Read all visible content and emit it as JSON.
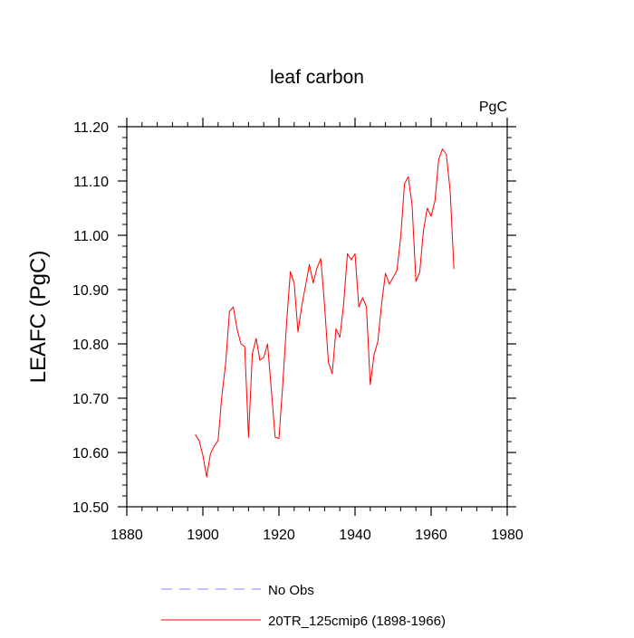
{
  "chart_data": {
    "type": "line",
    "title": "leaf carbon",
    "units_label": "PgC",
    "ylabel": "LEAFC  (PgC)",
    "xlabel": "",
    "xlim": [
      1880,
      1980
    ],
    "ylim": [
      10.5,
      11.2
    ],
    "x_ticks": [
      1880,
      1900,
      1920,
      1940,
      1960,
      1980
    ],
    "x_tick_labels": [
      "1880",
      "1900",
      "1920",
      "1940",
      "1960",
      "1980"
    ],
    "y_ticks": [
      10.5,
      10.6,
      10.7,
      10.8,
      10.9,
      11.0,
      11.1,
      11.2
    ],
    "y_tick_labels": [
      "10.50",
      "10.60",
      "10.70",
      "10.80",
      "10.90",
      "11.00",
      "11.10",
      "11.20"
    ],
    "grid": false,
    "legend_position": "bottom",
    "legend": [
      {
        "label": "No Obs",
        "color": "#8080ff",
        "dash": true
      },
      {
        "label": "20TR_125cmip6 (1898-1966)",
        "color": "#ff0000",
        "dash": false
      }
    ],
    "series": [
      {
        "name": "20TR_125cmip6 (1898-1966)",
        "color": "#ff0000",
        "x": [
          1898,
          1899,
          1900,
          1901,
          1902,
          1903,
          1904,
          1905,
          1906,
          1907,
          1908,
          1909,
          1910,
          1911,
          1912,
          1913,
          1914,
          1915,
          1916,
          1917,
          1918,
          1919,
          1920,
          1921,
          1922,
          1923,
          1924,
          1925,
          1926,
          1927,
          1928,
          1929,
          1930,
          1931,
          1932,
          1933,
          1934,
          1935,
          1936,
          1937,
          1938,
          1939,
          1940,
          1941,
          1942,
          1943,
          1944,
          1945,
          1946,
          1947,
          1948,
          1949,
          1950,
          1951,
          1952,
          1953,
          1954,
          1955,
          1956,
          1957,
          1958,
          1959,
          1960,
          1961,
          1962,
          1963,
          1964,
          1965,
          1966
        ],
        "values": [
          10.633,
          10.622,
          10.595,
          10.555,
          10.598,
          10.612,
          10.622,
          10.705,
          10.765,
          10.86,
          10.868,
          10.827,
          10.8,
          10.795,
          10.628,
          10.782,
          10.81,
          10.77,
          10.775,
          10.8,
          10.715,
          10.628,
          10.626,
          10.725,
          10.838,
          10.933,
          10.912,
          10.822,
          10.87,
          10.908,
          10.946,
          10.912,
          10.94,
          10.957,
          10.87,
          10.766,
          10.745,
          10.828,
          10.812,
          10.873,
          10.966,
          10.955,
          10.966,
          10.868,
          10.885,
          10.868,
          10.725,
          10.78,
          10.805,
          10.875,
          10.93,
          10.91,
          10.922,
          10.935,
          10.996,
          11.095,
          11.108,
          11.055,
          10.915,
          10.932,
          11.01,
          11.05,
          11.035,
          11.063,
          11.14,
          11.159,
          11.149,
          11.082,
          10.938
        ]
      }
    ]
  }
}
